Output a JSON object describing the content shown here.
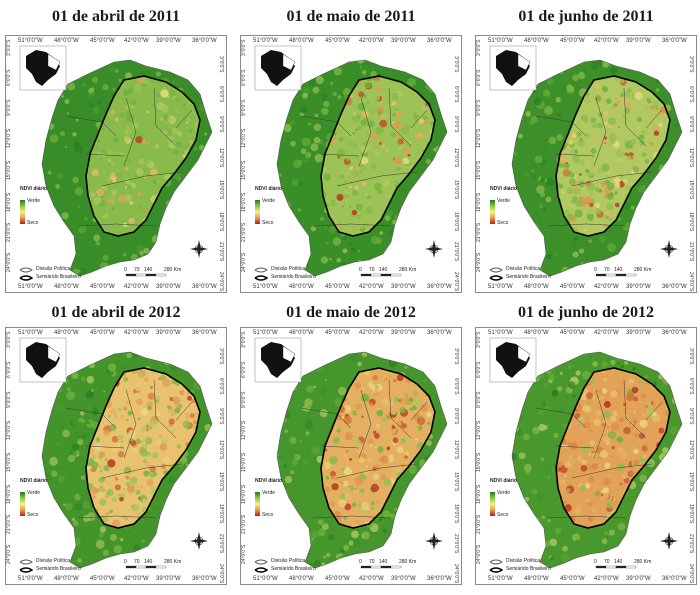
{
  "panels": [
    {
      "title": "01 de abril de 2011",
      "year": 2011,
      "month": "abril",
      "drought_level": 0.15
    },
    {
      "title": "01 de maio de 2011",
      "year": 2011,
      "month": "maio",
      "drought_level": 0.25
    },
    {
      "title": "01 de junho de 2011",
      "year": 2011,
      "month": "junho",
      "drought_level": 0.35
    },
    {
      "title": "01 de abril de 2012",
      "year": 2012,
      "month": "abril",
      "drought_level": 0.6
    },
    {
      "title": "01 de maio de 2012",
      "year": 2012,
      "month": "maio",
      "drought_level": 0.75
    },
    {
      "title": "01 de junho de 2012",
      "year": 2012,
      "month": "junho",
      "drought_level": 0.85
    }
  ],
  "axes": {
    "longitudes": [
      "51°0'0\"W",
      "48°0'0\"W",
      "45°0'0\"W",
      "42°0'0\"W",
      "39°0'0\"W",
      "36°0'0\"W"
    ],
    "latitudes": [
      "3°0'0\"S",
      "6°0'0\"S",
      "9°0'0\"S",
      "12°0'0\"S",
      "15°0'0\"S",
      "18°0'0\"S",
      "21°0'0\"S",
      "24°0'0\"S"
    ]
  },
  "legend": {
    "title": "NDVI diário",
    "high": "Verde",
    "low": "Seco",
    "political": "Divisão Política",
    "semiarid": "Semiárido Brasileiro"
  },
  "scale": {
    "labels": [
      "0",
      "70",
      "140",
      "280 Km"
    ]
  },
  "compass": {
    "icon": "north-arrow-compass-icon"
  },
  "colors": {
    "green_dark": "#1f7a1f",
    "green": "#5aa832",
    "yellow": "#f2e98a",
    "orange": "#e89a4a",
    "red": "#b71c1c"
  }
}
